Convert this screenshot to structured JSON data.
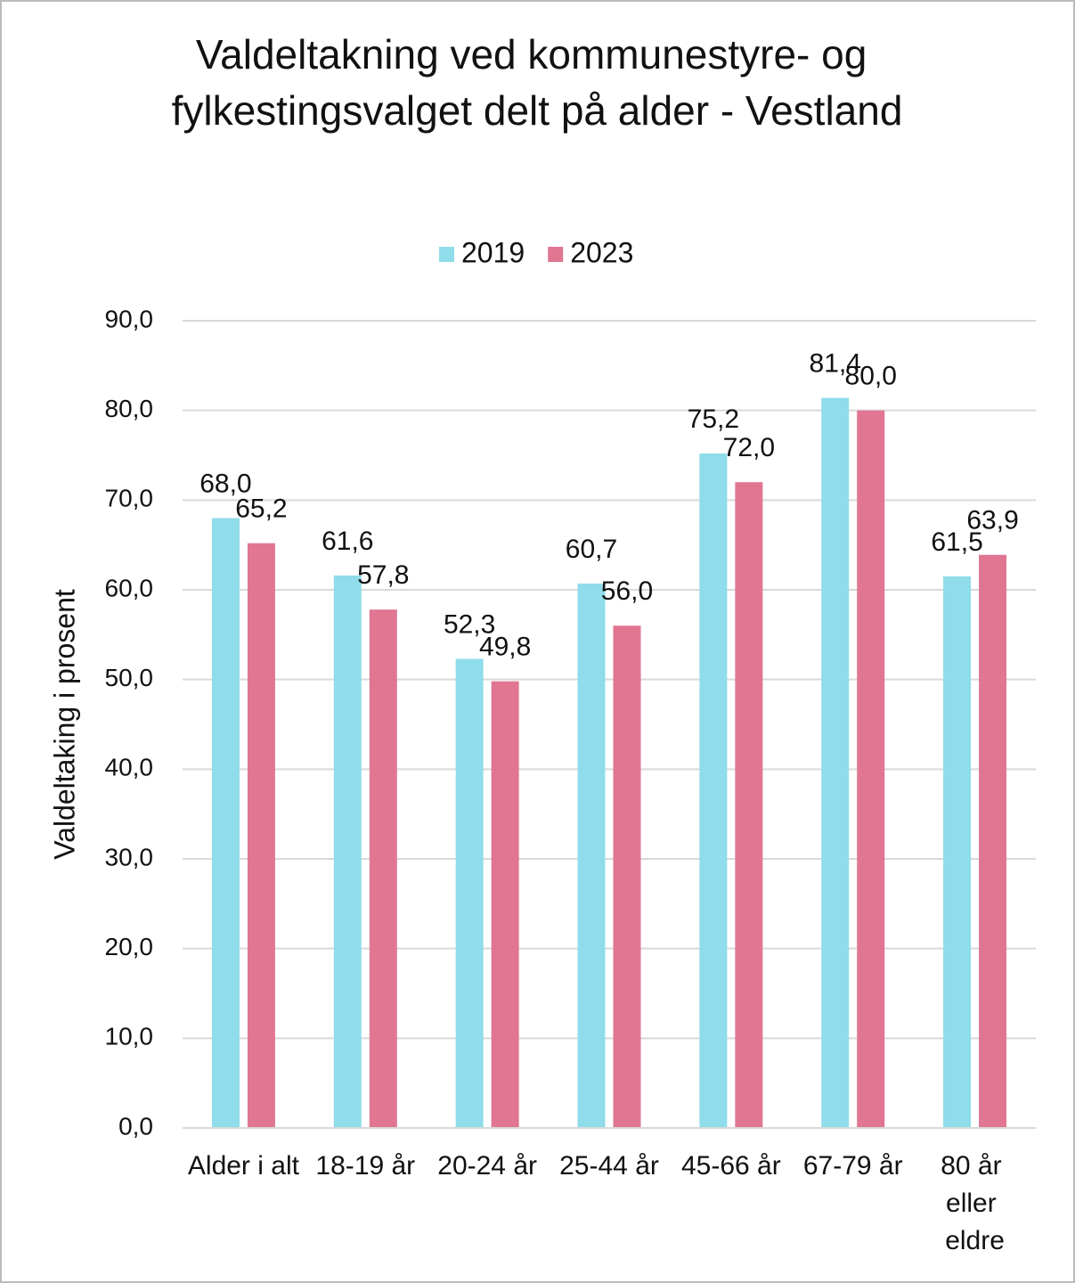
{
  "chart_data": {
    "type": "bar",
    "title": "Valdeltakning ved kommunestyre- og fylkestingsvalget delt på alder - Vestland",
    "y_label": "Valdeltaking i prosent",
    "categories": [
      "Alder i alt",
      "18-19 år",
      "20-24 år",
      "25-44 år",
      "45-66 år",
      "67-79 år",
      "80 år eller eldre"
    ],
    "series": [
      {
        "name": "2019",
        "color": "#8fdcea",
        "values": [
          68.0,
          61.6,
          52.3,
          60.7,
          75.2,
          81.4,
          61.5
        ],
        "value_labels": [
          "68,0",
          "61,6",
          "52,3",
          "60,7",
          "75,2",
          "81,4",
          "61,5"
        ]
      },
      {
        "name": "2023",
        "color": "#e07692",
        "values": [
          65.2,
          57.8,
          49.8,
          56.0,
          72.0,
          80.0,
          63.9
        ],
        "value_labels": [
          "65,2",
          "57,8",
          "49,8",
          "56,0",
          "72,0",
          "80,0",
          "63,9"
        ]
      }
    ],
    "ylim": [
      0,
      90
    ],
    "yticks": [
      {
        "value": 0,
        "label": "0,0"
      },
      {
        "value": 10,
        "label": "10,0"
      },
      {
        "value": 20,
        "label": "20,0"
      },
      {
        "value": 30,
        "label": "30,0"
      },
      {
        "value": 40,
        "label": "40,0"
      },
      {
        "value": 50,
        "label": "50,0"
      },
      {
        "value": 60,
        "label": "60,0"
      },
      {
        "value": 70,
        "label": "70,0"
      },
      {
        "value": 80,
        "label": "80,0"
      },
      {
        "value": 90,
        "label": "90,0"
      }
    ],
    "grid": true,
    "legend": "top"
  }
}
